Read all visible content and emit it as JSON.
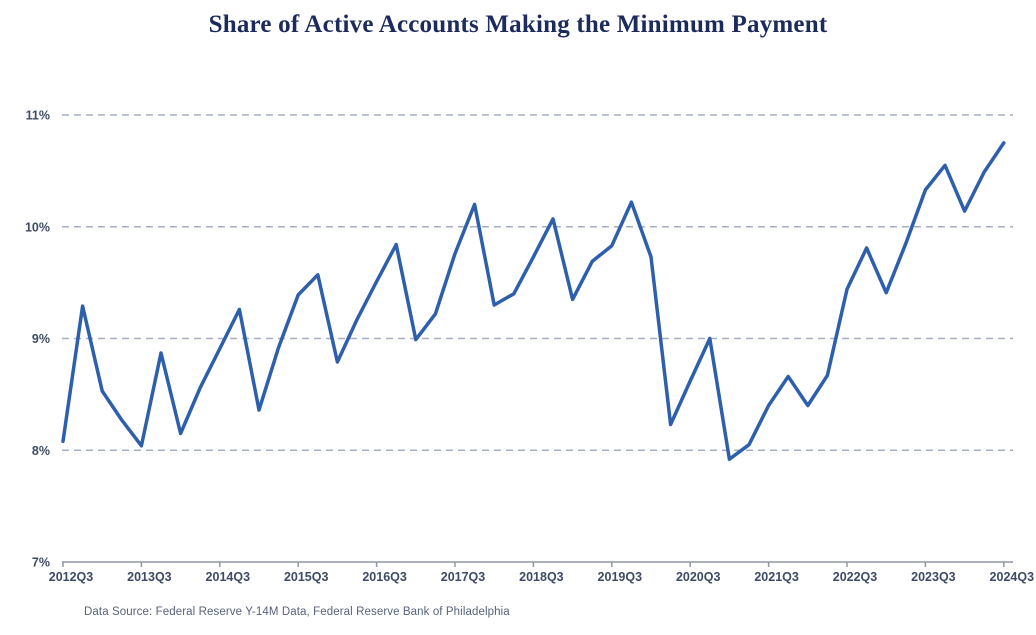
{
  "title": "Share of Active Accounts Making the Minimum Payment",
  "source_note": "Data Source: Federal Reserve Y-14M Data, Federal Reserve Bank of Philadelphia",
  "colors": {
    "title_text": "#1d2a5c",
    "line": "#2e5fad",
    "gridline": "#a6aec2",
    "axis": "#8f97a6",
    "tick_label": "#3e4a66",
    "source_text": "#57627a"
  },
  "chart_data": {
    "type": "line",
    "title": "Share of Active Accounts Making the Minimum Payment",
    "categories": [
      "2012Q3",
      "2012Q4",
      "2013Q1",
      "2013Q2",
      "2013Q3",
      "2013Q4",
      "2014Q1",
      "2014Q2",
      "2014Q3",
      "2014Q4",
      "2015Q1",
      "2015Q2",
      "2015Q3",
      "2015Q4",
      "2016Q1",
      "2016Q2",
      "2016Q3",
      "2016Q4",
      "2017Q1",
      "2017Q2",
      "2017Q3",
      "2017Q4",
      "2018Q1",
      "2018Q2",
      "2018Q3",
      "2018Q4",
      "2019Q1",
      "2019Q2",
      "2019Q3",
      "2019Q4",
      "2020Q1",
      "2020Q2",
      "2020Q3",
      "2020Q4",
      "2021Q1",
      "2021Q2",
      "2021Q3",
      "2021Q4",
      "2022Q1",
      "2022Q2",
      "2022Q3",
      "2022Q4",
      "2023Q1",
      "2023Q2",
      "2023Q3",
      "2023Q4",
      "2024Q1",
      "2024Q2",
      "2024Q3"
    ],
    "values": [
      8.08,
      9.29,
      8.53,
      8.27,
      8.04,
      8.87,
      8.15,
      8.56,
      8.91,
      9.26,
      8.36,
      8.92,
      9.39,
      9.57,
      8.79,
      9.17,
      9.51,
      9.84,
      8.99,
      9.22,
      9.76,
      10.2,
      9.3,
      9.4,
      9.73,
      10.07,
      9.35,
      9.69,
      9.83,
      10.22,
      9.73,
      8.23,
      8.62,
      9.0,
      7.92,
      8.05,
      8.4,
      8.66,
      8.4,
      8.67,
      9.44,
      9.81,
      9.41,
      9.85,
      10.33,
      10.55,
      10.14,
      10.49,
      10.75
    ],
    "series_name": "Share of active accounts making the minimum payment",
    "unit": "%",
    "xlabel": "",
    "ylabel": "",
    "ylim": [
      7,
      11
    ],
    "y_ticks": [
      7,
      8,
      9,
      10,
      11
    ],
    "y_tick_labels": [
      "7%",
      "8%",
      "9%",
      "10%",
      "11%"
    ],
    "x_tick_labels": [
      "2012Q3",
      "2013Q3",
      "2014Q3",
      "2015Q3",
      "2016Q3",
      "2017Q3",
      "2018Q3",
      "2019Q3",
      "2020Q3",
      "2021Q3",
      "2022Q3",
      "2023Q3",
      "2024Q3"
    ],
    "x_tick_every": 4,
    "grid": "horizontal-dashed",
    "legend": "none"
  }
}
